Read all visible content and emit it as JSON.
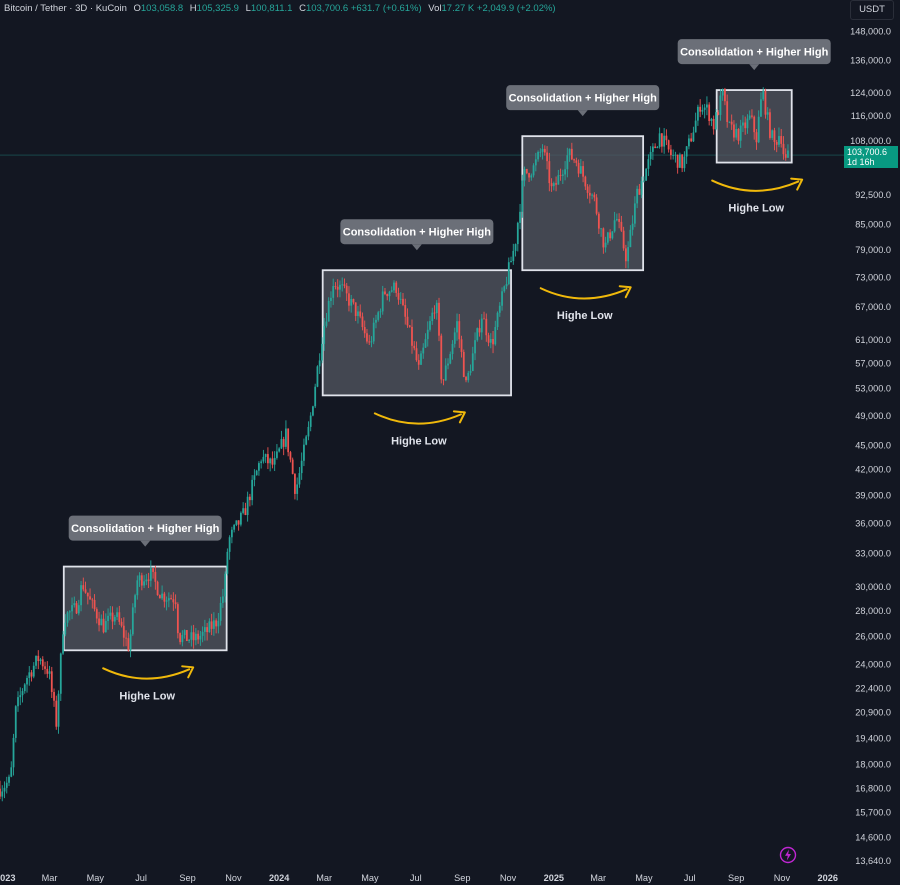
{
  "header": {
    "symbol": "Bitcoin / Tether · 3D · KuCoin",
    "o_label": "O",
    "o_value": "103,058.8",
    "h_label": "H",
    "h_value": "105,325.9",
    "l_label": "L",
    "l_value": "100,811.1",
    "c_label": "C",
    "c_value": "103,700.6",
    "change": "+631.7 (+0.61%)",
    "vol_label": "Vol",
    "vol_value": "17.27 K",
    "vol_change": "+2,049.9 (+2.02%)"
  },
  "unit_button": "USDT",
  "price_tag": {
    "price": "103,700.6",
    "countdown": "1d 16h"
  },
  "colors": {
    "background": "#131722",
    "up": "#26a69a",
    "down": "#ef5350",
    "box_fill": "#545861",
    "box_border": "#e0e3eb",
    "callout": "#6b6f78",
    "arc": "#f0b90b",
    "price_tag": "#089981",
    "brand_icon": "#c026d3"
  },
  "icons": {
    "brand": "tradingview-bolt-icon"
  },
  "chart_data": {
    "type": "candlestick",
    "scale": "log",
    "x_range": [
      "2022-12-25",
      "2026-01-20"
    ],
    "y_range": [
      13300,
      152000
    ],
    "y_ticks": [
      "148,000.0",
      "136,000.0",
      "124,000.0",
      "116,000.0",
      "108,000.0",
      "92,500.0",
      "85,000.0",
      "79,000.0",
      "73,000.0",
      "67,000.0",
      "61,000.0",
      "57,000.0",
      "53,000.0",
      "49,000.0",
      "45,000.0",
      "42,000.0",
      "39,000.0",
      "36,000.0",
      "33,000.0",
      "30,000.0",
      "28,000.0",
      "26,000.0",
      "24,000.0",
      "22,400.0",
      "20,900.0",
      "19,400.0",
      "18,000.0",
      "16,800.0",
      "15,700.0",
      "14,600.0",
      "13,640.0"
    ],
    "x_ticks": [
      {
        "date": "2023-01-01",
        "label": "2023"
      },
      {
        "date": "2023-03-01",
        "label": "Mar"
      },
      {
        "date": "2023-05-01",
        "label": "May"
      },
      {
        "date": "2023-07-01",
        "label": "Jul"
      },
      {
        "date": "2023-09-01",
        "label": "Sep"
      },
      {
        "date": "2023-11-01",
        "label": "Nov"
      },
      {
        "date": "2024-01-01",
        "label": "2024"
      },
      {
        "date": "2024-03-01",
        "label": "Mar"
      },
      {
        "date": "2024-05-01",
        "label": "May"
      },
      {
        "date": "2024-07-01",
        "label": "Jul"
      },
      {
        "date": "2024-09-01",
        "label": "Sep"
      },
      {
        "date": "2024-11-01",
        "label": "Nov"
      },
      {
        "date": "2025-01-01",
        "label": "2025"
      },
      {
        "date": "2025-03-01",
        "label": "Mar"
      },
      {
        "date": "2025-05-01",
        "label": "May"
      },
      {
        "date": "2025-07-01",
        "label": "Jul"
      },
      {
        "date": "2025-09-01",
        "label": "Sep"
      },
      {
        "date": "2025-11-01",
        "label": "Nov"
      },
      {
        "date": "2026-01-01",
        "label": "2026"
      }
    ],
    "last_price": 103700.6,
    "path": [
      [
        "2022-12-25",
        16800
      ],
      [
        "2023-01-08",
        17200
      ],
      [
        "2023-01-15",
        21000
      ],
      [
        "2023-01-28",
        23000
      ],
      [
        "2023-02-15",
        24500
      ],
      [
        "2023-02-28",
        23500
      ],
      [
        "2023-03-10",
        20300
      ],
      [
        "2023-03-20",
        27500
      ],
      [
        "2023-04-05",
        28200
      ],
      [
        "2023-04-14",
        30300
      ],
      [
        "2023-04-25",
        28600
      ],
      [
        "2023-05-12",
        26800
      ],
      [
        "2023-05-28",
        27700
      ],
      [
        "2023-06-15",
        25200
      ],
      [
        "2023-06-25",
        30500
      ],
      [
        "2023-07-13",
        31200
      ],
      [
        "2023-07-28",
        29300
      ],
      [
        "2023-08-16",
        29000
      ],
      [
        "2023-08-20",
        26000
      ],
      [
        "2023-09-10",
        25800
      ],
      [
        "2023-09-25",
        26300
      ],
      [
        "2023-10-10",
        27200
      ],
      [
        "2023-10-20",
        29800
      ],
      [
        "2023-10-25",
        34200
      ],
      [
        "2023-11-15",
        37000
      ],
      [
        "2023-12-08",
        43500
      ],
      [
        "2023-12-25",
        42500
      ],
      [
        "2024-01-10",
        46500
      ],
      [
        "2024-01-23",
        39500
      ],
      [
        "2024-02-10",
        47500
      ],
      [
        "2024-02-28",
        62500
      ],
      [
        "2024-03-13",
        72000
      ],
      [
        "2024-03-25",
        70500
      ],
      [
        "2024-04-13",
        66000
      ],
      [
        "2024-04-30",
        60000
      ],
      [
        "2024-05-20",
        70000
      ],
      [
        "2024-06-05",
        71000
      ],
      [
        "2024-06-25",
        61000
      ],
      [
        "2024-07-05",
        56000
      ],
      [
        "2024-07-28",
        68500
      ],
      [
        "2024-08-05",
        53500
      ],
      [
        "2024-08-25",
        64000
      ],
      [
        "2024-09-06",
        53500
      ],
      [
        "2024-09-27",
        65500
      ],
      [
        "2024-10-10",
        60000
      ],
      [
        "2024-10-29",
        72000
      ],
      [
        "2024-11-10",
        80000
      ],
      [
        "2024-11-22",
        98000
      ],
      [
        "2024-12-05",
        100000
      ],
      [
        "2024-12-17",
        106000
      ],
      [
        "2024-12-30",
        93000
      ],
      [
        "2025-01-20",
        104000
      ],
      [
        "2025-01-31",
        102000
      ],
      [
        "2025-02-24",
        91000
      ],
      [
        "2025-03-10",
        79500
      ],
      [
        "2025-03-25",
        87000
      ],
      [
        "2025-04-08",
        77000
      ],
      [
        "2025-04-22",
        93000
      ],
      [
        "2025-05-10",
        103000
      ],
      [
        "2025-05-22",
        110000
      ],
      [
        "2025-06-05",
        104000
      ],
      [
        "2025-06-22",
        101000
      ],
      [
        "2025-07-10",
        115000
      ],
      [
        "2025-07-15",
        120000
      ],
      [
        "2025-07-25",
        118000
      ],
      [
        "2025-08-02",
        113000
      ],
      [
        "2025-08-14",
        123500
      ],
      [
        "2025-08-22",
        112000
      ],
      [
        "2025-09-05",
        110000
      ],
      [
        "2025-09-20",
        115500
      ],
      [
        "2025-09-28",
        109000
      ],
      [
        "2025-10-06",
        125000
      ],
      [
        "2025-10-15",
        112000
      ],
      [
        "2025-10-22",
        107000
      ],
      [
        "2025-10-30",
        111000
      ],
      [
        "2025-11-05",
        101500
      ],
      [
        "2025-11-10",
        103700.6
      ]
    ],
    "zones": [
      {
        "start": "2023-03-20",
        "end": "2023-10-23",
        "low": 25000,
        "high": 31800,
        "callout": "Consolidation + Higher High",
        "arc_label": "Highe Low"
      },
      {
        "start": "2024-02-28",
        "end": "2024-11-05",
        "low": 52000,
        "high": 74500,
        "callout": "Consolidation + Higher High",
        "arc_label": "Highe Low"
      },
      {
        "start": "2024-11-20",
        "end": "2025-04-30",
        "low": 74500,
        "high": 109500,
        "callout": "Consolidation + Higher High",
        "arc_label": "Highe Low"
      },
      {
        "start": "2025-08-06",
        "end": "2025-11-14",
        "low": 101500,
        "high": 125000,
        "callout": "Consolidation + Higher High",
        "arc_label": "Highe Low"
      }
    ]
  }
}
